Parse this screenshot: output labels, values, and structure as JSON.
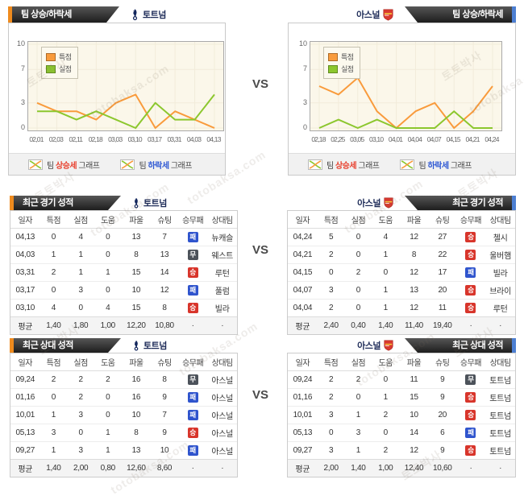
{
  "page": {
    "vs_label": "VS"
  },
  "watermark": {
    "brand": "토토박사",
    "site": "totobaksa.com"
  },
  "colors": {
    "accent_orange": "#ef8b1e",
    "accent_blue": "#4d7fd2",
    "team_name": "#1c2a57",
    "win": "#d8352b",
    "draw": "#4c525a",
    "loss": "#2f54cd",
    "rise_text": "#e8402e",
    "fall_text": "#2f58d3"
  },
  "teams": {
    "home": {
      "name": "토트넘"
    },
    "away": {
      "name": "아스널"
    }
  },
  "trend_section": {
    "tab_title": "팀 상승/하락세",
    "legend": {
      "rise": {
        "prefix": "팀 ",
        "highlight": "상승세",
        "suffix": " 그래프"
      },
      "fall": {
        "prefix": "팀 ",
        "highlight": "하락세",
        "suffix": " 그래프"
      }
    }
  },
  "chart_data": [
    {
      "type": "line",
      "team": "토트넘",
      "title": "팀 상승/하락세 (토트넘)",
      "x": [
        "02,01",
        "02,03",
        "02,11",
        "02,18",
        "03,03",
        "03,10",
        "03,17",
        "03,31",
        "04,03",
        "04,13"
      ],
      "series": [
        {
          "name": "특점",
          "color": "#f99b3c",
          "values": [
            3,
            2,
            2,
            1,
            3,
            4,
            0,
            2,
            1,
            0
          ]
        },
        {
          "name": "실점",
          "color": "#8cc72e",
          "values": [
            2,
            2,
            1,
            2,
            1,
            0,
            3,
            1,
            1,
            4
          ]
        }
      ],
      "ylim": [
        0,
        10
      ],
      "yticks": [
        0,
        3,
        7,
        10
      ],
      "grid": true,
      "legend_position": "top-left"
    },
    {
      "type": "line",
      "team": "아스널",
      "title": "팀 상승/하락세 (아스널)",
      "x": [
        "02,18",
        "02,25",
        "03,05",
        "03,10",
        "04,01",
        "04,04",
        "04,07",
        "04,15",
        "04,21",
        "04,24"
      ],
      "series": [
        {
          "name": "특점",
          "color": "#f99b3c",
          "values": [
            5,
            4,
            6,
            2,
            0,
            2,
            3,
            0,
            2,
            5
          ]
        },
        {
          "name": "실점",
          "color": "#8cc72e",
          "values": [
            0,
            1,
            0,
            1,
            0,
            0,
            0,
            2,
            0,
            0
          ]
        }
      ],
      "ylim": [
        0,
        10
      ],
      "yticks": [
        0,
        3,
        7,
        10
      ],
      "grid": true,
      "legend_position": "top-left"
    }
  ],
  "recent_section": {
    "tab_title": "최근 경기 성적",
    "columns": [
      "일자",
      "특점",
      "실점",
      "도움",
      "파울",
      "슈팅",
      "승무패",
      "상대팀"
    ],
    "home": {
      "rows": [
        {
          "date": "04,13",
          "gs": "0",
          "gc": "4",
          "as": "0",
          "foul": "13",
          "shot": "7",
          "result": "패",
          "opp": "뉴캐슬"
        },
        {
          "date": "04,03",
          "gs": "1",
          "gc": "1",
          "as": "0",
          "foul": "8",
          "shot": "13",
          "result": "무",
          "opp": "웨스트"
        },
        {
          "date": "03,31",
          "gs": "2",
          "gc": "1",
          "as": "1",
          "foul": "15",
          "shot": "14",
          "result": "승",
          "opp": "루턴"
        },
        {
          "date": "03,17",
          "gs": "0",
          "gc": "3",
          "as": "0",
          "foul": "10",
          "shot": "12",
          "result": "패",
          "opp": "풀럼"
        },
        {
          "date": "03,10",
          "gs": "4",
          "gc": "0",
          "as": "4",
          "foul": "15",
          "shot": "8",
          "result": "승",
          "opp": "빌라"
        }
      ],
      "avg": {
        "date": "평균",
        "gs": "1,40",
        "gc": "1,80",
        "as": "1,00",
        "foul": "12,20",
        "shot": "10,80",
        "result": "·",
        "opp": "·"
      }
    },
    "away": {
      "rows": [
        {
          "date": "04,24",
          "gs": "5",
          "gc": "0",
          "as": "4",
          "foul": "12",
          "shot": "27",
          "result": "승",
          "opp": "첼시"
        },
        {
          "date": "04,21",
          "gs": "2",
          "gc": "0",
          "as": "1",
          "foul": "8",
          "shot": "22",
          "result": "승",
          "opp": "울버햄"
        },
        {
          "date": "04,15",
          "gs": "0",
          "gc": "2",
          "as": "0",
          "foul": "12",
          "shot": "17",
          "result": "패",
          "opp": "빌라"
        },
        {
          "date": "04,07",
          "gs": "3",
          "gc": "0",
          "as": "1",
          "foul": "13",
          "shot": "20",
          "result": "승",
          "opp": "브라이"
        },
        {
          "date": "04,04",
          "gs": "2",
          "gc": "0",
          "as": "1",
          "foul": "12",
          "shot": "11",
          "result": "승",
          "opp": "루턴"
        }
      ],
      "avg": {
        "date": "평균",
        "gs": "2,40",
        "gc": "0,40",
        "as": "1,40",
        "foul": "11,40",
        "shot": "19,40",
        "result": "·",
        "opp": "·"
      }
    }
  },
  "h2h_section": {
    "tab_title": "최근 상대 성적",
    "columns": [
      "일자",
      "특점",
      "실점",
      "도움",
      "파울",
      "슈팅",
      "승무패",
      "상대팀"
    ],
    "home": {
      "rows": [
        {
          "date": "09,24",
          "gs": "2",
          "gc": "2",
          "as": "2",
          "foul": "16",
          "shot": "8",
          "result": "무",
          "opp": "아스널"
        },
        {
          "date": "01,16",
          "gs": "0",
          "gc": "2",
          "as": "0",
          "foul": "16",
          "shot": "9",
          "result": "패",
          "opp": "아스널"
        },
        {
          "date": "10,01",
          "gs": "1",
          "gc": "3",
          "as": "0",
          "foul": "10",
          "shot": "7",
          "result": "패",
          "opp": "아스널"
        },
        {
          "date": "05,13",
          "gs": "3",
          "gc": "0",
          "as": "1",
          "foul": "8",
          "shot": "9",
          "result": "승",
          "opp": "아스널"
        },
        {
          "date": "09,27",
          "gs": "1",
          "gc": "3",
          "as": "1",
          "foul": "13",
          "shot": "10",
          "result": "패",
          "opp": "아스널"
        }
      ],
      "avg": {
        "date": "평균",
        "gs": "1,40",
        "gc": "2,00",
        "as": "0,80",
        "foul": "12,60",
        "shot": "8,60",
        "result": "·",
        "opp": "·"
      }
    },
    "away": {
      "rows": [
        {
          "date": "09,24",
          "gs": "2",
          "gc": "2",
          "as": "0",
          "foul": "11",
          "shot": "9",
          "result": "무",
          "opp": "토트넘"
        },
        {
          "date": "01,16",
          "gs": "2",
          "gc": "0",
          "as": "1",
          "foul": "15",
          "shot": "9",
          "result": "승",
          "opp": "토트넘"
        },
        {
          "date": "10,01",
          "gs": "3",
          "gc": "1",
          "as": "2",
          "foul": "10",
          "shot": "20",
          "result": "승",
          "opp": "토트넘"
        },
        {
          "date": "05,13",
          "gs": "0",
          "gc": "3",
          "as": "0",
          "foul": "14",
          "shot": "6",
          "result": "패",
          "opp": "토트넘"
        },
        {
          "date": "09,27",
          "gs": "3",
          "gc": "1",
          "as": "2",
          "foul": "12",
          "shot": "9",
          "result": "승",
          "opp": "토트넘"
        }
      ],
      "avg": {
        "date": "평균",
        "gs": "2,00",
        "gc": "1,40",
        "as": "1,00",
        "foul": "12,40",
        "shot": "10,60",
        "result": "·",
        "opp": "·"
      }
    }
  }
}
